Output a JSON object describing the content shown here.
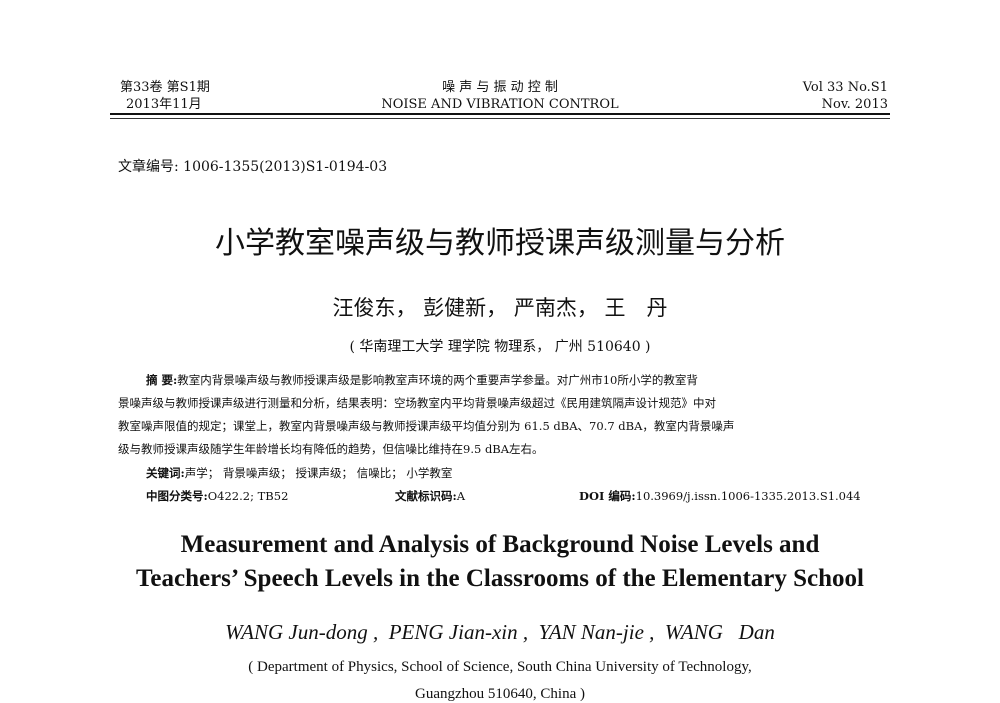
{
  "header": {
    "left_line1": "第33卷 第S1期",
    "left_line2": "2013年11月",
    "center_line1": "噪 声 与 振 动 控 制",
    "center_line2": "NOISE AND VIBRATION CONTROL",
    "right_line1": "Vol 33 No.S1",
    "right_line2": "Nov. 2013"
  },
  "article_number": "文章编号: 1006-1355(2013)S1-0194-03",
  "title_cn": "小学教室噪声级与教师授课声级测量与分析",
  "authors_cn": "汪俊东， 彭健新， 严南杰， 王　丹",
  "affiliation_cn": "( 华南理工大学 理学院 物理系， 广州 510640 )",
  "abstract": {
    "label": "摘 要:",
    "lines": [
      "教室内背景噪声级与教师授课声级是影响教室声环境的两个重要声学参量。对广州市10所小学的教室背",
      "景噪声级与教师授课声级进行测量和分析，结果表明：空场教室内平均背景噪声级超过《民用建筑隔声设计规范》中对",
      "教室噪声限值的规定；课堂上，教室内背景噪声级与教师授课声级平均值分别为 61.5 dBA、70.7 dBA，教室内背景噪声",
      "级与教师授课声级随学生年龄增长均有降低的趋势，但信噪比维持在9.5 dBA左右。"
    ],
    "keywords_label": "关键词:",
    "keywords": "声学； 背景噪声级； 授课声级； 信噪比； 小学教室",
    "clc_label": "中图分类号:",
    "clc": "O422.2; TB52",
    "doc_code_label": "文献标识码:",
    "doc_code": "A",
    "doi_label": "DOI 编码:",
    "doi": "10.3969/j.issn.1006-1335.2013.S1.044"
  },
  "title_en_line1": "Measurement and Analysis of Background Noise Levels and",
  "title_en_line2": "Teachers’ Speech Levels in the Classrooms of the Elementary School",
  "authors_en": "WANG Jun-dong ,  PENG Jian-xin ,  YAN Nan-jie ,  WANG   Dan",
  "affiliation_en_line1": "( Department of Physics,  School of Science,  South China University of Technology,",
  "affiliation_en_line2": "Guangzhou  510640,  China )"
}
